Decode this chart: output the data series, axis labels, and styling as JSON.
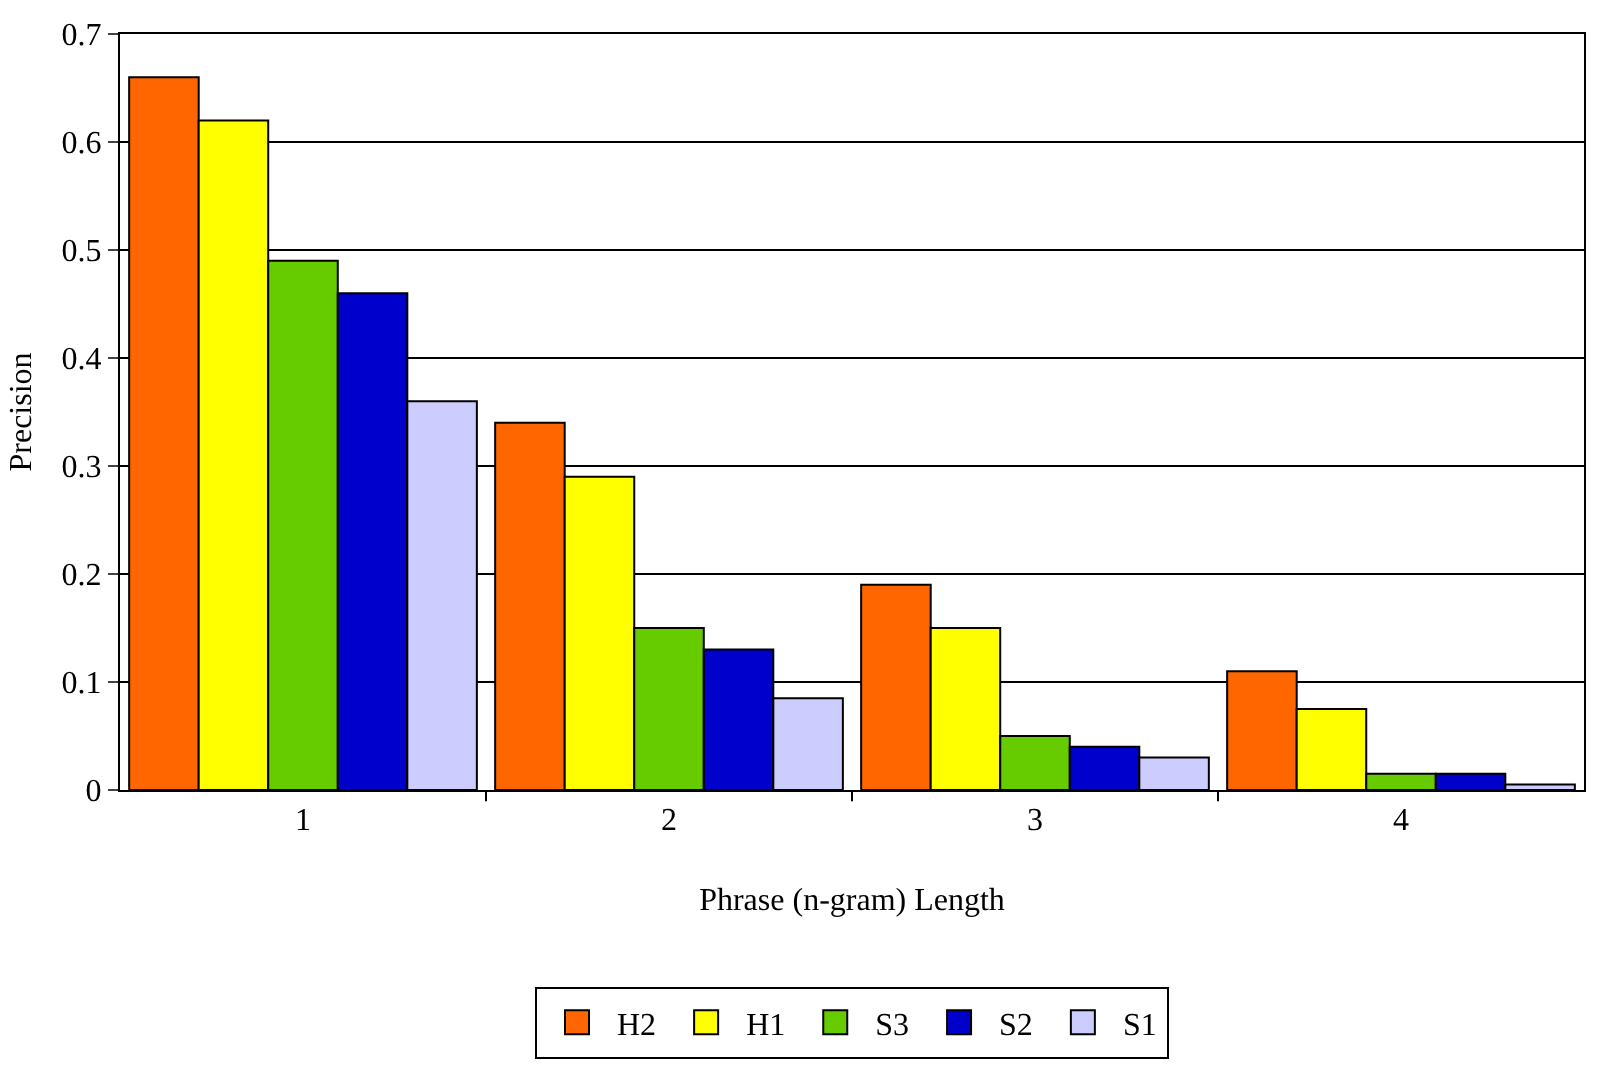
{
  "chart_data": {
    "type": "bar",
    "xlabel": "Phrase (n-gram) Length",
    "ylabel": "Precision",
    "categories": [
      "1",
      "2",
      "3",
      "4"
    ],
    "series": [
      {
        "name": "H2",
        "color": "#ff6600",
        "values": [
          0.66,
          0.34,
          0.19,
          0.11
        ]
      },
      {
        "name": "H1",
        "color": "#ffff00",
        "values": [
          0.62,
          0.29,
          0.15,
          0.075
        ]
      },
      {
        "name": "S3",
        "color": "#66cc00",
        "values": [
          0.49,
          0.15,
          0.05,
          0.015
        ]
      },
      {
        "name": "S2",
        "color": "#0000cc",
        "values": [
          0.46,
          0.13,
          0.04,
          0.015
        ]
      },
      {
        "name": "S1",
        "color": "#ccccff",
        "values": [
          0.36,
          0.085,
          0.03,
          0.005
        ]
      }
    ],
    "ylim": [
      0,
      0.7
    ],
    "yticks": [
      0,
      0.1,
      0.2,
      0.3,
      0.4,
      0.5,
      0.6,
      0.7
    ],
    "grid": "y",
    "legend": "bottom"
  }
}
